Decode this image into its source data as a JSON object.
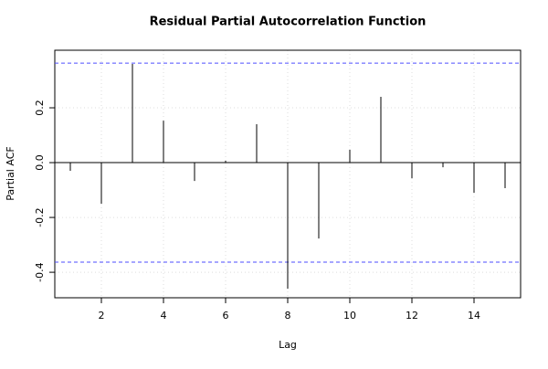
{
  "chart_data": {
    "type": "pacf",
    "title": "Residual Partial Autocorrelation Function",
    "x_label": "Lag",
    "y_label": "Partial ACF",
    "x": [
      1,
      2,
      3,
      4,
      5,
      6,
      7,
      8,
      9,
      10,
      11,
      12,
      13,
      14,
      15
    ],
    "values": [
      -0.03,
      -0.15,
      0.36,
      0.153,
      -0.067,
      0.007,
      0.14,
      -0.46,
      -0.277,
      0.047,
      0.24,
      -0.057,
      -0.017,
      -0.11,
      -0.093
    ],
    "color": "#000000",
    "conf_lines": [
      0.363,
      -0.363
    ],
    "conf_color": "#4d4dff",
    "xlim": [
      0.5,
      15.5
    ],
    "xticks": [
      2,
      4,
      6,
      8,
      10,
      12,
      14
    ],
    "ylim": [
      -0.493,
      0.41
    ],
    "yticks": [
      -0.4,
      -0.2,
      {
        "value": 0,
        "label": "0.0"
      },
      0.2
    ],
    "grid": true
  }
}
